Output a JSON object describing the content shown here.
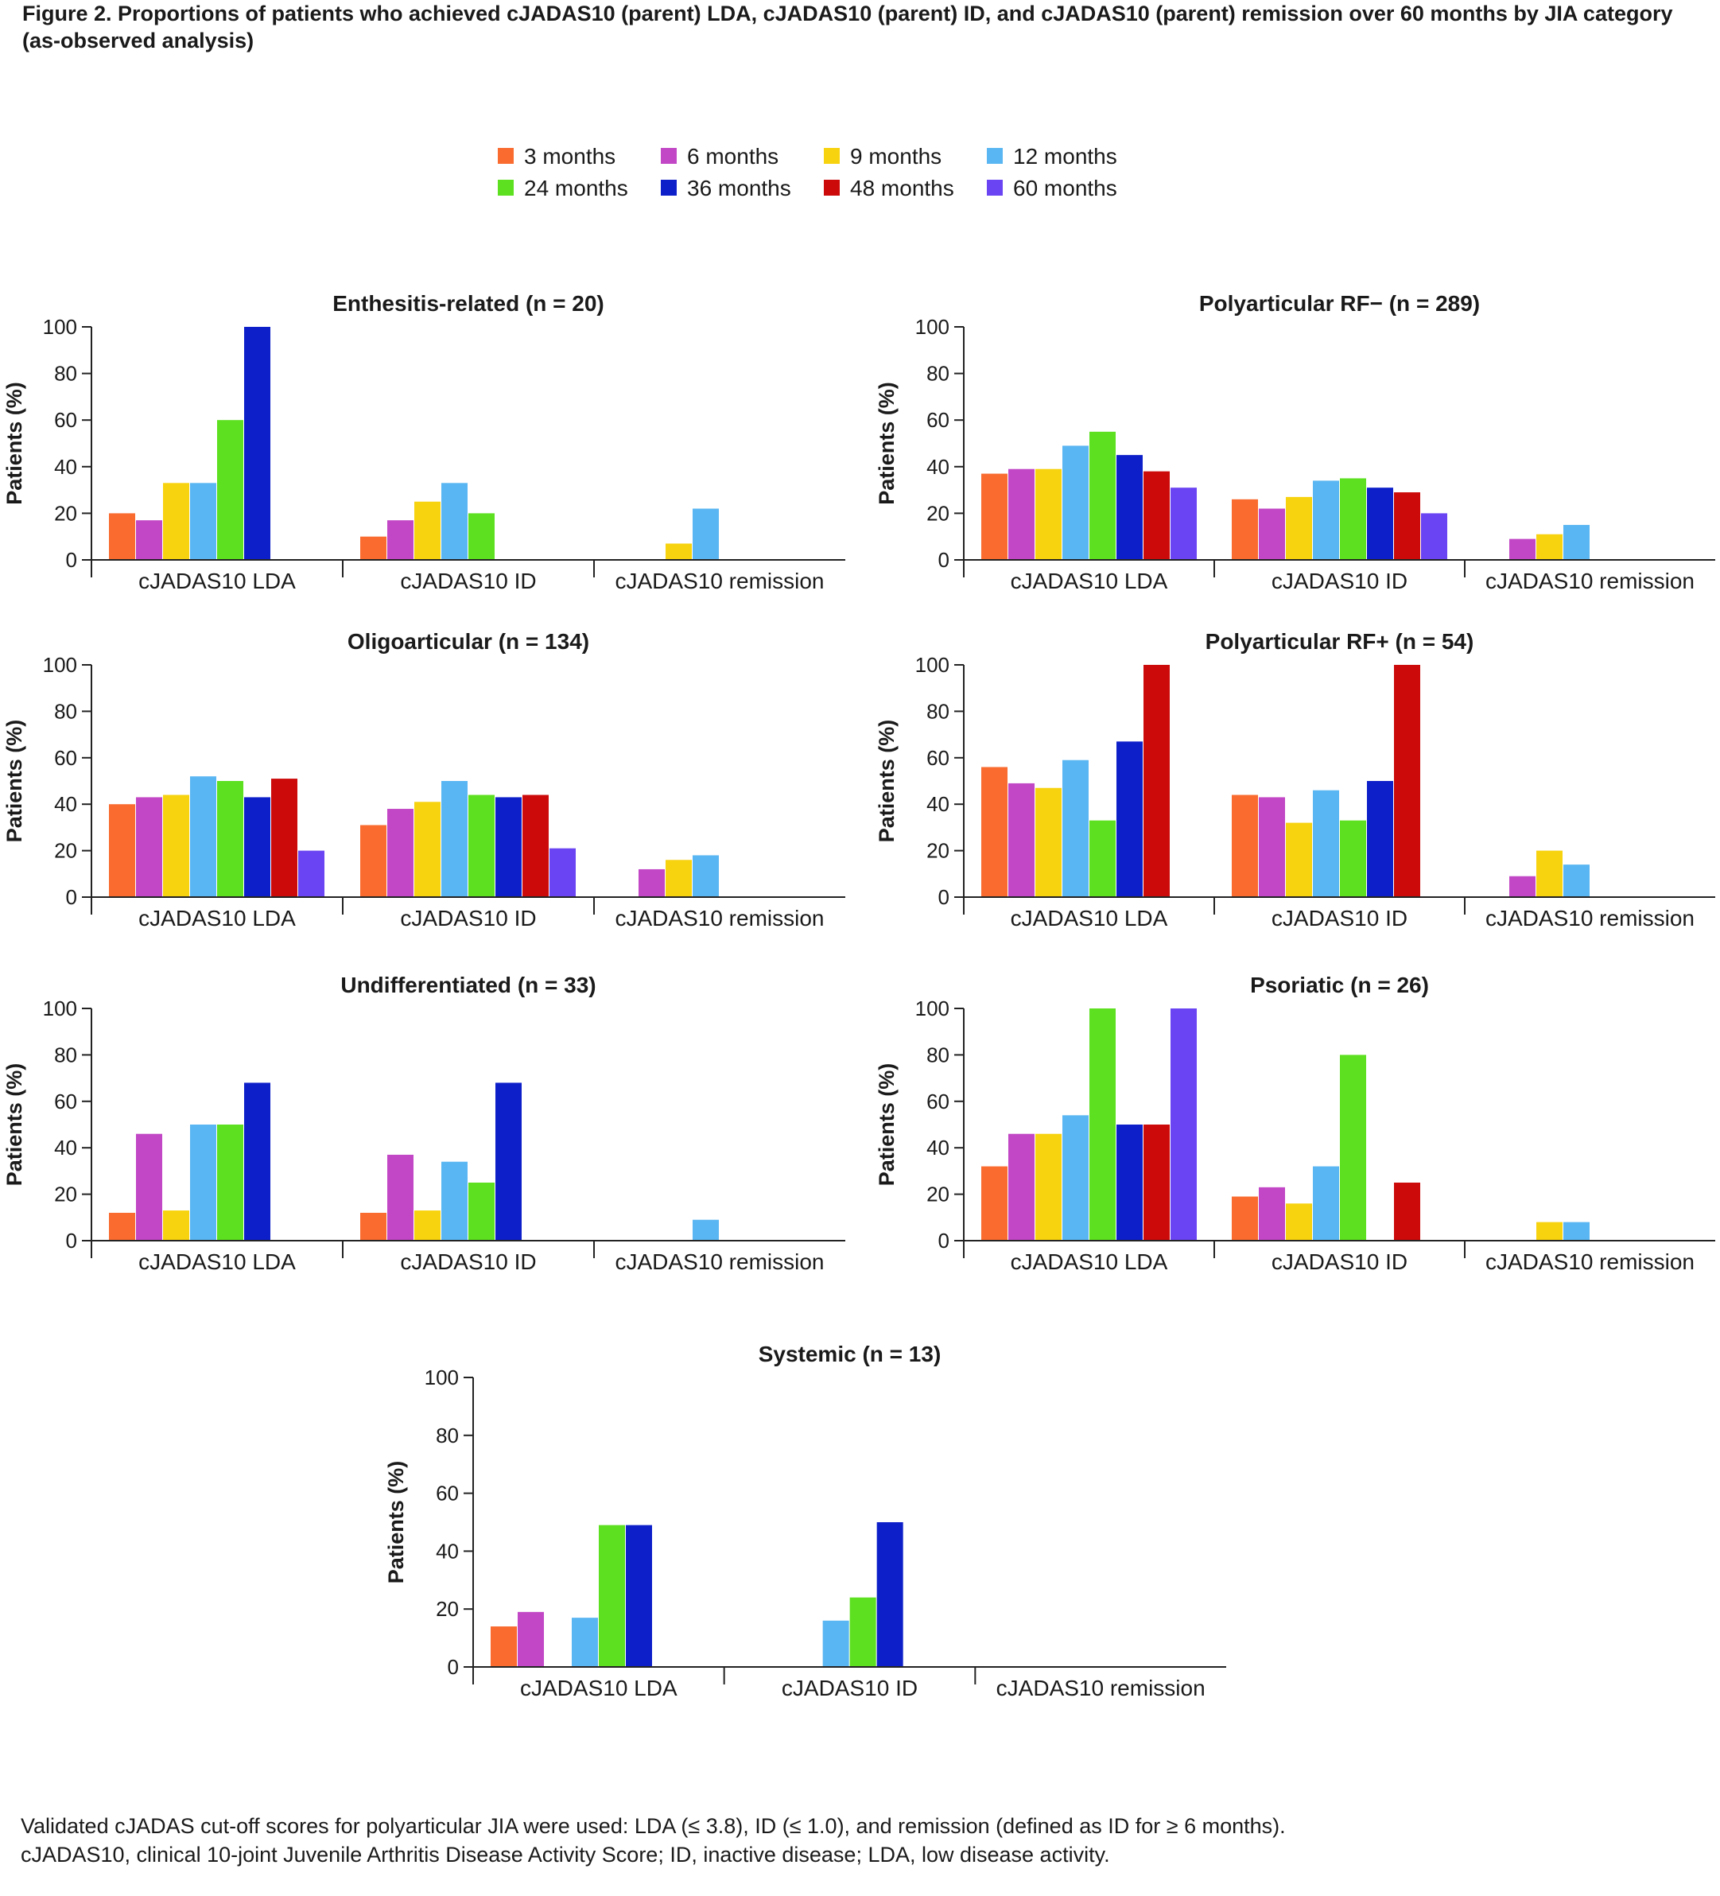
{
  "title": "Figure 2. Proportions of patients who achieved cJADAS10 (parent) LDA, cJADAS10 (parent) ID, and cJADAS10 (parent) remission over 60 months by JIA category (as-observed analysis)",
  "legend": [
    {
      "label": "3 months",
      "color": "#f96b2f"
    },
    {
      "label": "6 months",
      "color": "#c247c6"
    },
    {
      "label": "9 months",
      "color": "#f7d20e"
    },
    {
      "label": "12 months",
      "color": "#5ab6f2"
    },
    {
      "label": "24 months",
      "color": "#5ce01f"
    },
    {
      "label": "36 months",
      "color": "#0d1fc9"
    },
    {
      "label": "48 months",
      "color": "#cc0a0a"
    },
    {
      "label": "60 months",
      "color": "#6a44f2"
    }
  ],
  "footnotes": [
    "Validated cJADAS cut-off scores for polyarticular JIA were used: LDA (≤ 3.8), ID (≤ 1.0), and remission (defined as ID for ≥ 6 months).",
    "cJADAS10, clinical 10-joint Juvenile Arthritis Disease Activity Score; ID, inactive disease; LDA, low disease activity."
  ],
  "chart_data": [
    {
      "type": "bar",
      "title": "Enthesitis-related (n = 20)",
      "ylabel": "Patients (%)",
      "xlabel": "",
      "ylim": [
        0,
        100
      ],
      "yticks": [
        "0",
        "20",
        "40",
        "60",
        "80",
        "100"
      ],
      "categories": [
        "cJADAS10 LDA",
        "cJADAS10 ID",
        "cJADAS10 remission"
      ],
      "series": [
        {
          "name": "3 months",
          "values": [
            20,
            10,
            null
          ]
        },
        {
          "name": "6 months",
          "values": [
            17,
            17,
            null
          ]
        },
        {
          "name": "9 months",
          "values": [
            33,
            25,
            7
          ]
        },
        {
          "name": "12 months",
          "values": [
            33,
            33,
            22
          ]
        },
        {
          "name": "24 months",
          "values": [
            60,
            20,
            null
          ]
        },
        {
          "name": "36 months",
          "values": [
            100,
            null,
            null
          ]
        },
        {
          "name": "48 months",
          "values": [
            null,
            null,
            null
          ]
        },
        {
          "name": "60 months",
          "values": [
            null,
            null,
            null
          ]
        }
      ]
    },
    {
      "type": "bar",
      "title": "Polyarticular RF− (n = 289)",
      "ylabel": "Patients (%)",
      "xlabel": "",
      "ylim": [
        0,
        100
      ],
      "yticks": [
        "0",
        "20",
        "40",
        "60",
        "80",
        "100"
      ],
      "categories": [
        "cJADAS10 LDA",
        "cJADAS10 ID",
        "cJADAS10 remission"
      ],
      "series": [
        {
          "name": "3 months",
          "values": [
            37,
            26,
            null
          ]
        },
        {
          "name": "6 months",
          "values": [
            39,
            22,
            9
          ]
        },
        {
          "name": "9 months",
          "values": [
            39,
            27,
            11
          ]
        },
        {
          "name": "12 months",
          "values": [
            49,
            34,
            15
          ]
        },
        {
          "name": "24 months",
          "values": [
            55,
            35,
            null
          ]
        },
        {
          "name": "36 months",
          "values": [
            45,
            31,
            null
          ]
        },
        {
          "name": "48 months",
          "values": [
            38,
            29,
            null
          ]
        },
        {
          "name": "60 months",
          "values": [
            31,
            20,
            null
          ]
        }
      ]
    },
    {
      "type": "bar",
      "title": "Oligoarticular (n = 134)",
      "ylabel": "Patients (%)",
      "xlabel": "",
      "ylim": [
        0,
        100
      ],
      "yticks": [
        "0",
        "20",
        "40",
        "60",
        "80",
        "100"
      ],
      "categories": [
        "cJADAS10 LDA",
        "cJADAS10 ID",
        "cJADAS10 remission"
      ],
      "series": [
        {
          "name": "3 months",
          "values": [
            40,
            31,
            null
          ]
        },
        {
          "name": "6 months",
          "values": [
            43,
            38,
            12
          ]
        },
        {
          "name": "9 months",
          "values": [
            44,
            41,
            16
          ]
        },
        {
          "name": "12 months",
          "values": [
            52,
            50,
            18
          ]
        },
        {
          "name": "24 months",
          "values": [
            50,
            44,
            null
          ]
        },
        {
          "name": "36 months",
          "values": [
            43,
            43,
            null
          ]
        },
        {
          "name": "48 months",
          "values": [
            51,
            44,
            null
          ]
        },
        {
          "name": "60 months",
          "values": [
            20,
            21,
            null
          ]
        }
      ]
    },
    {
      "type": "bar",
      "title": "Polyarticular RF+ (n = 54)",
      "ylabel": "Patients (%)",
      "xlabel": "",
      "ylim": [
        0,
        100
      ],
      "yticks": [
        "0",
        "20",
        "40",
        "60",
        "80",
        "100"
      ],
      "categories": [
        "cJADAS10 LDA",
        "cJADAS10 ID",
        "cJADAS10 remission"
      ],
      "series": [
        {
          "name": "3 months",
          "values": [
            56,
            44,
            null
          ]
        },
        {
          "name": "6 months",
          "values": [
            49,
            43,
            9
          ]
        },
        {
          "name": "9 months",
          "values": [
            47,
            32,
            20
          ]
        },
        {
          "name": "12 months",
          "values": [
            59,
            46,
            14
          ]
        },
        {
          "name": "24 months",
          "values": [
            33,
            33,
            null
          ]
        },
        {
          "name": "36 months",
          "values": [
            67,
            50,
            null
          ]
        },
        {
          "name": "48 months",
          "values": [
            100,
            100,
            null
          ]
        },
        {
          "name": "60 months",
          "values": [
            null,
            null,
            null
          ]
        }
      ]
    },
    {
      "type": "bar",
      "title": "Undifferentiated (n = 33)",
      "ylabel": "Patients (%)",
      "xlabel": "",
      "ylim": [
        0,
        100
      ],
      "yticks": [
        "0",
        "20",
        "40",
        "60",
        "80",
        "100"
      ],
      "categories": [
        "cJADAS10 LDA",
        "cJADAS10 ID",
        "cJADAS10 remission"
      ],
      "series": [
        {
          "name": "3 months",
          "values": [
            12,
            12,
            null
          ]
        },
        {
          "name": "6 months",
          "values": [
            46,
            37,
            null
          ]
        },
        {
          "name": "9 months",
          "values": [
            13,
            13,
            null
          ]
        },
        {
          "name": "12 months",
          "values": [
            50,
            34,
            9
          ]
        },
        {
          "name": "24 months",
          "values": [
            50,
            25,
            null
          ]
        },
        {
          "name": "36 months",
          "values": [
            68,
            68,
            null
          ]
        },
        {
          "name": "48 months",
          "values": [
            null,
            null,
            null
          ]
        },
        {
          "name": "60 months",
          "values": [
            null,
            null,
            null
          ]
        }
      ]
    },
    {
      "type": "bar",
      "title": "Psoriatic (n = 26)",
      "ylabel": "Patients (%)",
      "xlabel": "",
      "ylim": [
        0,
        100
      ],
      "yticks": [
        "0",
        "20",
        "40",
        "60",
        "80",
        "100"
      ],
      "categories": [
        "cJADAS10 LDA",
        "cJADAS10 ID",
        "cJADAS10 remission"
      ],
      "series": [
        {
          "name": "3 months",
          "values": [
            32,
            19,
            null
          ]
        },
        {
          "name": "6 months",
          "values": [
            46,
            23,
            null
          ]
        },
        {
          "name": "9 months",
          "values": [
            46,
            16,
            8
          ]
        },
        {
          "name": "12 months",
          "values": [
            54,
            32,
            8
          ]
        },
        {
          "name": "24 months",
          "values": [
            100,
            80,
            null
          ]
        },
        {
          "name": "36 months",
          "values": [
            50,
            null,
            null
          ]
        },
        {
          "name": "48 months",
          "values": [
            50,
            25,
            null
          ]
        },
        {
          "name": "60 months",
          "values": [
            100,
            null,
            null
          ]
        }
      ]
    },
    {
      "type": "bar",
      "title": "Systemic (n = 13)",
      "ylabel": "Patients (%)",
      "xlabel": "",
      "ylim": [
        0,
        100
      ],
      "yticks": [
        "0",
        "20",
        "40",
        "60",
        "80",
        "100"
      ],
      "categories": [
        "cJADAS10 LDA",
        "cJADAS10 ID",
        "cJADAS10 remission"
      ],
      "series": [
        {
          "name": "3 months",
          "values": [
            14,
            null,
            null
          ]
        },
        {
          "name": "6 months",
          "values": [
            19,
            null,
            null
          ]
        },
        {
          "name": "9 months",
          "values": [
            null,
            null,
            null
          ]
        },
        {
          "name": "12 months",
          "values": [
            17,
            16,
            null
          ]
        },
        {
          "name": "24 months",
          "values": [
            49,
            24,
            null
          ]
        },
        {
          "name": "36 months",
          "values": [
            49,
            50,
            null
          ]
        },
        {
          "name": "48 months",
          "values": [
            null,
            null,
            null
          ]
        },
        {
          "name": "60 months",
          "values": [
            null,
            null,
            null
          ]
        }
      ]
    }
  ]
}
